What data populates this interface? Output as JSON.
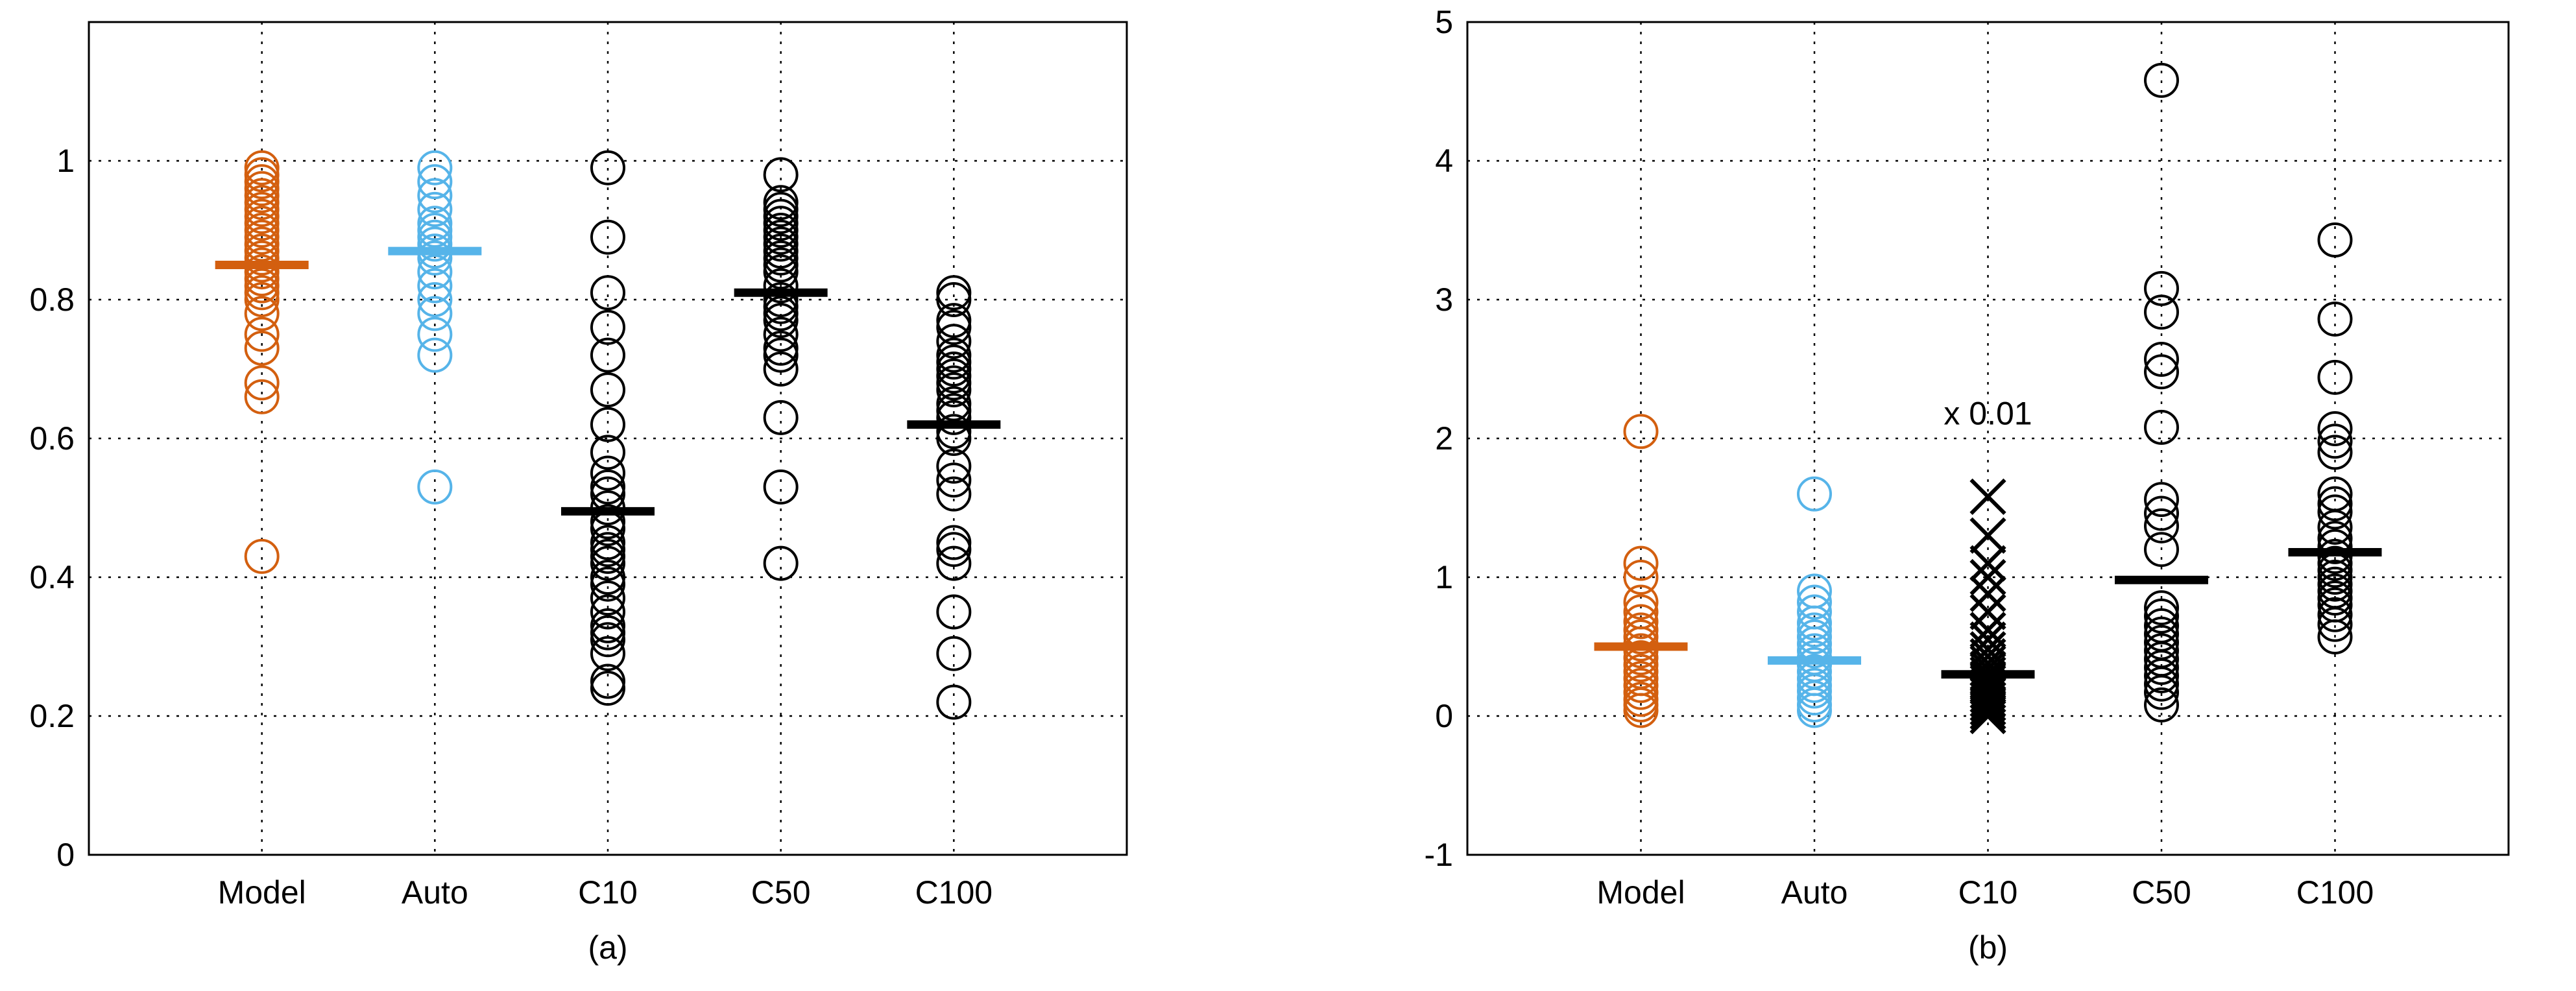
{
  "chart_data": [
    {
      "type": "scatter",
      "caption": "(a)",
      "categories": [
        "Model",
        "Auto",
        "C10",
        "C50",
        "C100"
      ],
      "ylim": [
        0,
        1.2
      ],
      "yticks": [
        "0",
        "0.2",
        "0.4",
        "0.6",
        "0.8",
        "1"
      ],
      "grid": true,
      "annotation": "",
      "series": [
        {
          "category": "Model",
          "color": "#d35f0f",
          "marker": "circle",
          "mean": 0.85,
          "values": [
            0.43,
            0.66,
            0.68,
            0.73,
            0.75,
            0.78,
            0.8,
            0.81,
            0.82,
            0.83,
            0.84,
            0.85,
            0.86,
            0.87,
            0.88,
            0.89,
            0.9,
            0.91,
            0.92,
            0.93,
            0.94,
            0.95,
            0.96,
            0.97,
            0.98,
            0.99
          ]
        },
        {
          "category": "Auto",
          "color": "#56b4e9",
          "marker": "circle",
          "mean": 0.87,
          "values": [
            0.53,
            0.72,
            0.75,
            0.78,
            0.8,
            0.82,
            0.84,
            0.86,
            0.87,
            0.88,
            0.89,
            0.9,
            0.91,
            0.93,
            0.95,
            0.97,
            0.99
          ]
        },
        {
          "category": "C10",
          "color": "#000000",
          "marker": "circle",
          "mean": 0.495,
          "values": [
            0.24,
            0.25,
            0.29,
            0.31,
            0.32,
            0.33,
            0.35,
            0.37,
            0.39,
            0.4,
            0.42,
            0.43,
            0.44,
            0.45,
            0.47,
            0.48,
            0.5,
            0.52,
            0.53,
            0.55,
            0.58,
            0.62,
            0.67,
            0.72,
            0.76,
            0.81,
            0.89,
            0.99
          ]
        },
        {
          "category": "C50",
          "color": "#000000",
          "marker": "circle",
          "mean": 0.81,
          "values": [
            0.42,
            0.53,
            0.63,
            0.7,
            0.72,
            0.73,
            0.75,
            0.77,
            0.78,
            0.79,
            0.8,
            0.82,
            0.84,
            0.85,
            0.86,
            0.87,
            0.88,
            0.89,
            0.9,
            0.91,
            0.92,
            0.93,
            0.94,
            0.98
          ]
        },
        {
          "category": "C100",
          "color": "#000000",
          "marker": "circle",
          "mean": 0.62,
          "values": [
            0.22,
            0.29,
            0.35,
            0.42,
            0.44,
            0.45,
            0.52,
            0.54,
            0.56,
            0.6,
            0.61,
            0.63,
            0.64,
            0.65,
            0.67,
            0.68,
            0.69,
            0.7,
            0.71,
            0.72,
            0.74,
            0.76,
            0.77,
            0.8,
            0.81
          ]
        }
      ]
    },
    {
      "type": "scatter",
      "caption": "(b)",
      "categories": [
        "Model",
        "Auto",
        "C10",
        "C50",
        "C100"
      ],
      "ylim": [
        -1,
        5
      ],
      "yticks": [
        "-1",
        "0",
        "1",
        "2",
        "3",
        "4",
        "5"
      ],
      "grid": true,
      "annotation": "x 0.01",
      "series": [
        {
          "category": "Model",
          "color": "#d35f0f",
          "marker": "circle",
          "mean": 0.5,
          "values": [
            0.04,
            0.08,
            0.12,
            0.17,
            0.22,
            0.27,
            0.32,
            0.37,
            0.42,
            0.47,
            0.52,
            0.57,
            0.62,
            0.68,
            0.75,
            0.82,
            1.0,
            1.1,
            2.05
          ]
        },
        {
          "category": "Auto",
          "color": "#56b4e9",
          "marker": "circle",
          "mean": 0.4,
          "values": [
            0.04,
            0.08,
            0.13,
            0.18,
            0.22,
            0.27,
            0.32,
            0.37,
            0.42,
            0.47,
            0.52,
            0.57,
            0.62,
            0.67,
            0.75,
            0.82,
            0.9,
            1.6
          ]
        },
        {
          "category": "C10",
          "color": "#000000",
          "marker": "cross",
          "mean": 0.3,
          "values": [
            0.0,
            0.03,
            0.06,
            0.09,
            0.12,
            0.15,
            0.18,
            0.21,
            0.24,
            0.27,
            0.3,
            0.34,
            0.38,
            0.43,
            0.48,
            0.55,
            0.62,
            0.75,
            0.88,
            1.0,
            1.1,
            1.3,
            1.58
          ]
        },
        {
          "category": "C50",
          "color": "#000000",
          "marker": "circle",
          "mean": 0.98,
          "values": [
            0.08,
            0.17,
            0.23,
            0.29,
            0.35,
            0.41,
            0.47,
            0.53,
            0.59,
            0.65,
            0.72,
            0.78,
            1.2,
            1.37,
            1.46,
            1.56,
            2.08,
            2.48,
            2.57,
            2.91,
            3.08,
            4.58
          ]
        },
        {
          "category": "C100",
          "color": "#000000",
          "marker": "circle",
          "mean": 1.18,
          "values": [
            0.57,
            0.66,
            0.73,
            0.8,
            0.85,
            0.9,
            0.95,
            1.0,
            1.05,
            1.1,
            1.15,
            1.22,
            1.28,
            1.36,
            1.47,
            1.53,
            1.6,
            1.9,
            1.98,
            2.07,
            2.44,
            2.86,
            3.43
          ]
        }
      ]
    }
  ]
}
